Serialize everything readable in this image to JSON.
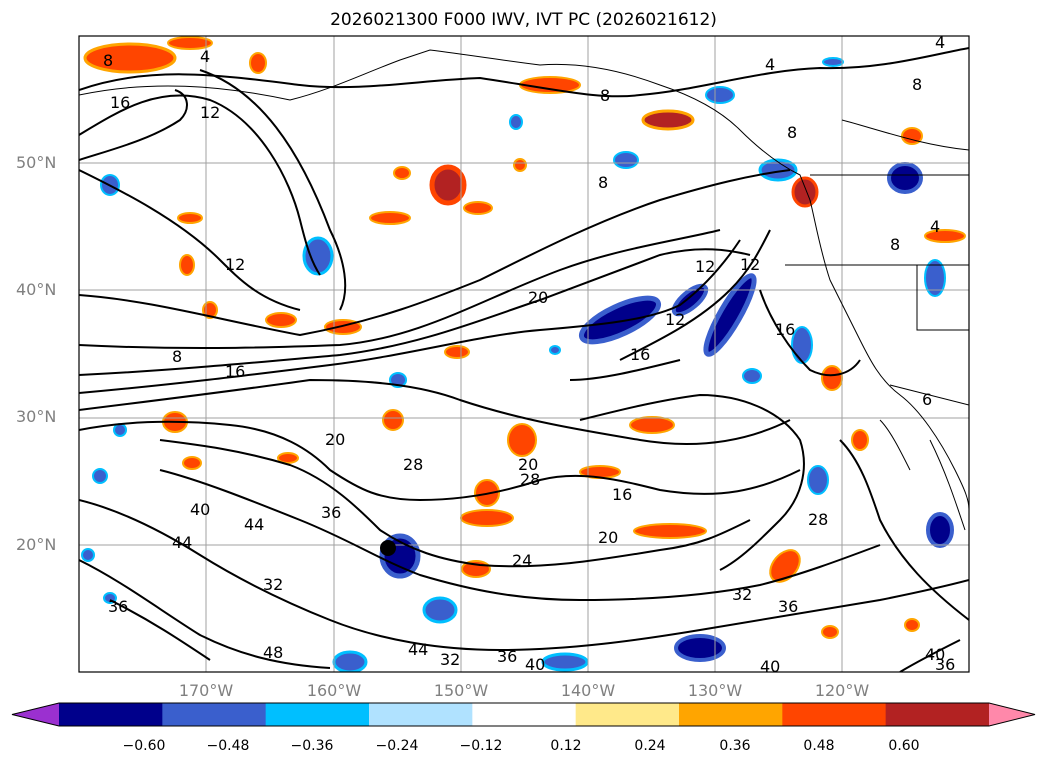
{
  "title": "2026021300 F000 IWV, IVT PC (2026021612)",
  "map": {
    "projection": "lat-lon",
    "extent": {
      "lon_min": -180,
      "lon_max": -110,
      "lat_min": 10,
      "lat_max": 60
    },
    "gridlines": true,
    "lat_labels": [
      "50°N",
      "40°N",
      "30°N",
      "20°N"
    ],
    "lon_labels": [
      "170°W",
      "160°W",
      "150°W",
      "140°W",
      "130°W",
      "120°W"
    ],
    "contour_labels": [
      "8",
      "4",
      "16",
      "12",
      "8",
      "8",
      "4",
      "8",
      "8",
      "12",
      "4",
      "8",
      "12",
      "12",
      "12",
      "20",
      "16",
      "16",
      "8",
      "16",
      "20",
      "20",
      "28",
      "16",
      "20",
      "28",
      "36",
      "44",
      "40",
      "44",
      "24",
      "32",
      "32",
      "36",
      "36",
      "28",
      "40",
      "48",
      "44",
      "32",
      "36",
      "40",
      "36",
      "40",
      "6",
      "4"
    ],
    "colors": {
      "coast": "#000000",
      "contour": "#000000",
      "grid": "#a0a0a0"
    }
  },
  "colorbar": {
    "ticks": [
      "−0.60",
      "−0.48",
      "−0.36",
      "−0.24",
      "−0.12",
      "0.12",
      "0.24",
      "0.36",
      "0.48",
      "0.60"
    ],
    "colors": [
      "#9b30d0",
      "#00008b",
      "#3a5fcd",
      "#00bfff",
      "#b0e2ff",
      "#ffffff",
      "#ffe98a",
      "#ffa500",
      "#ff4500",
      "#b22222",
      "#ff88aa"
    ],
    "extend": "both"
  }
}
